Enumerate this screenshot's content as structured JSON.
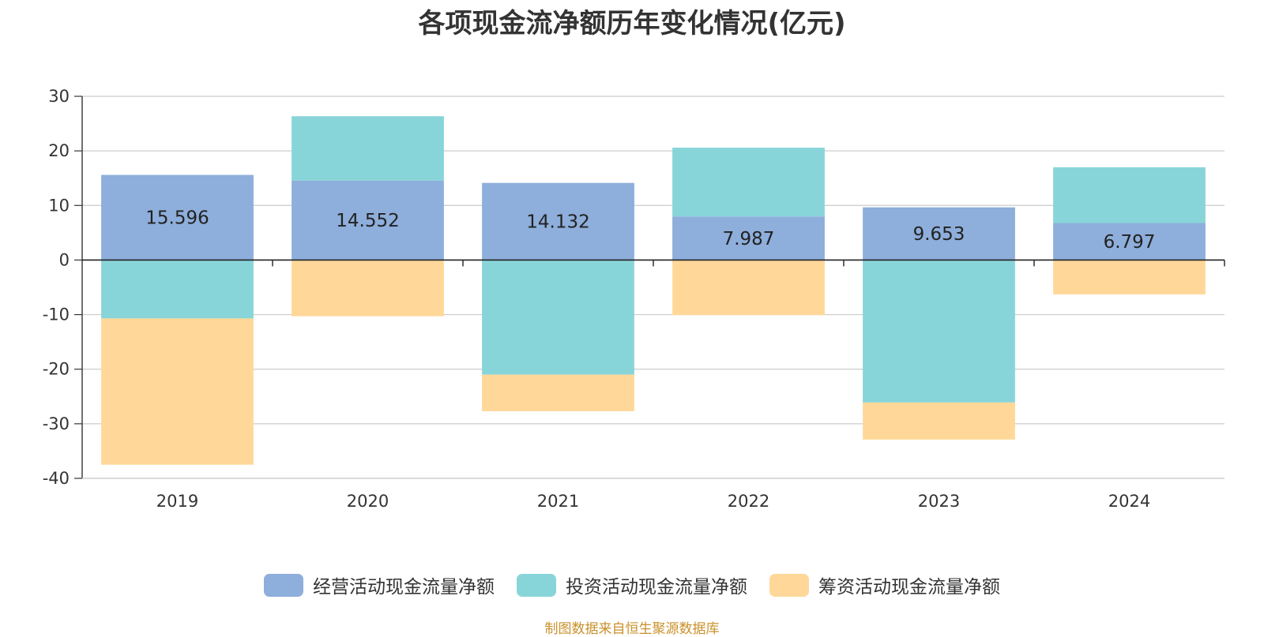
{
  "chart_data": {
    "type": "bar",
    "stacked": true,
    "title": "各项现金流净额历年变化情况(亿元)",
    "categories": [
      "2019",
      "2020",
      "2021",
      "2022",
      "2023",
      "2024"
    ],
    "ylim": [
      -40,
      30
    ],
    "yticks": [
      30,
      20,
      10,
      0,
      -10,
      -20,
      -30,
      -40
    ],
    "grid": true,
    "legend_position": "bottom",
    "series": [
      {
        "name": "经营活动现金流量净额",
        "color": "#8eaedb",
        "values": [
          15.596,
          14.552,
          14.132,
          7.987,
          9.653,
          6.797
        ],
        "labels": [
          "15.596",
          "14.552",
          "14.132",
          "7.987",
          "9.653",
          "6.797"
        ]
      },
      {
        "name": "投资活动现金流量净额",
        "color": "#88d5d9",
        "values": [
          -10.7,
          11.8,
          -21.0,
          12.6,
          -26.1,
          10.2
        ]
      },
      {
        "name": "筹资活动现金流量净额",
        "color": "#ffd899",
        "values": [
          -26.8,
          -10.3,
          -6.7,
          -10.1,
          -6.8,
          -6.3
        ]
      }
    ]
  },
  "source_note": "制图数据来自恒生聚源数据库"
}
